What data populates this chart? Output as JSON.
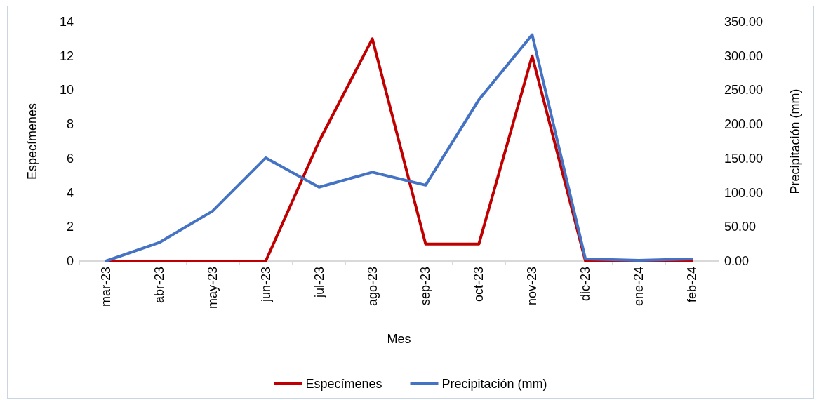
{
  "chart_data": {
    "type": "line",
    "xlabel": "Mes",
    "ylabel": "Especímenes",
    "y2label": "Precipitación (mm)",
    "categories": [
      "mar-23",
      "abr-23",
      "may-23",
      "jun-23",
      "jul-23",
      "ago-23",
      "sep-23",
      "oct-23",
      "nov-23",
      "dic-23",
      "ene-24",
      "feb-24"
    ],
    "series": [
      {
        "name": "Especímenes",
        "color": "#c00000",
        "values": [
          0,
          0,
          0,
          0,
          7,
          13,
          1,
          1,
          12,
          0,
          0,
          0
        ]
      },
      {
        "name": "Precipitación (mm)",
        "color": "#4472c4",
        "axis": "y2",
        "values": [
          0,
          27,
          73,
          151,
          108,
          130,
          111,
          236,
          331,
          3,
          1,
          3
        ]
      }
    ],
    "ylim": [
      0,
      14
    ],
    "yticks": [
      0,
      2,
      4,
      6,
      8,
      10,
      12,
      14
    ],
    "y2lim": [
      0,
      350
    ],
    "y2ticks": [
      {
        "value": 0,
        "label": "0.00"
      },
      {
        "value": 50,
        "label": "50.00"
      },
      {
        "value": 100,
        "label": "100.00"
      },
      {
        "value": 150,
        "label": "150.00"
      },
      {
        "value": 200,
        "label": "200.00"
      },
      {
        "value": 250,
        "label": "250.00"
      },
      {
        "value": 300,
        "label": "300.00"
      },
      {
        "value": 350,
        "label": "350.00"
      }
    ],
    "grid": false,
    "legend": "bottom",
    "marker": "none",
    "line_style": "solid"
  }
}
